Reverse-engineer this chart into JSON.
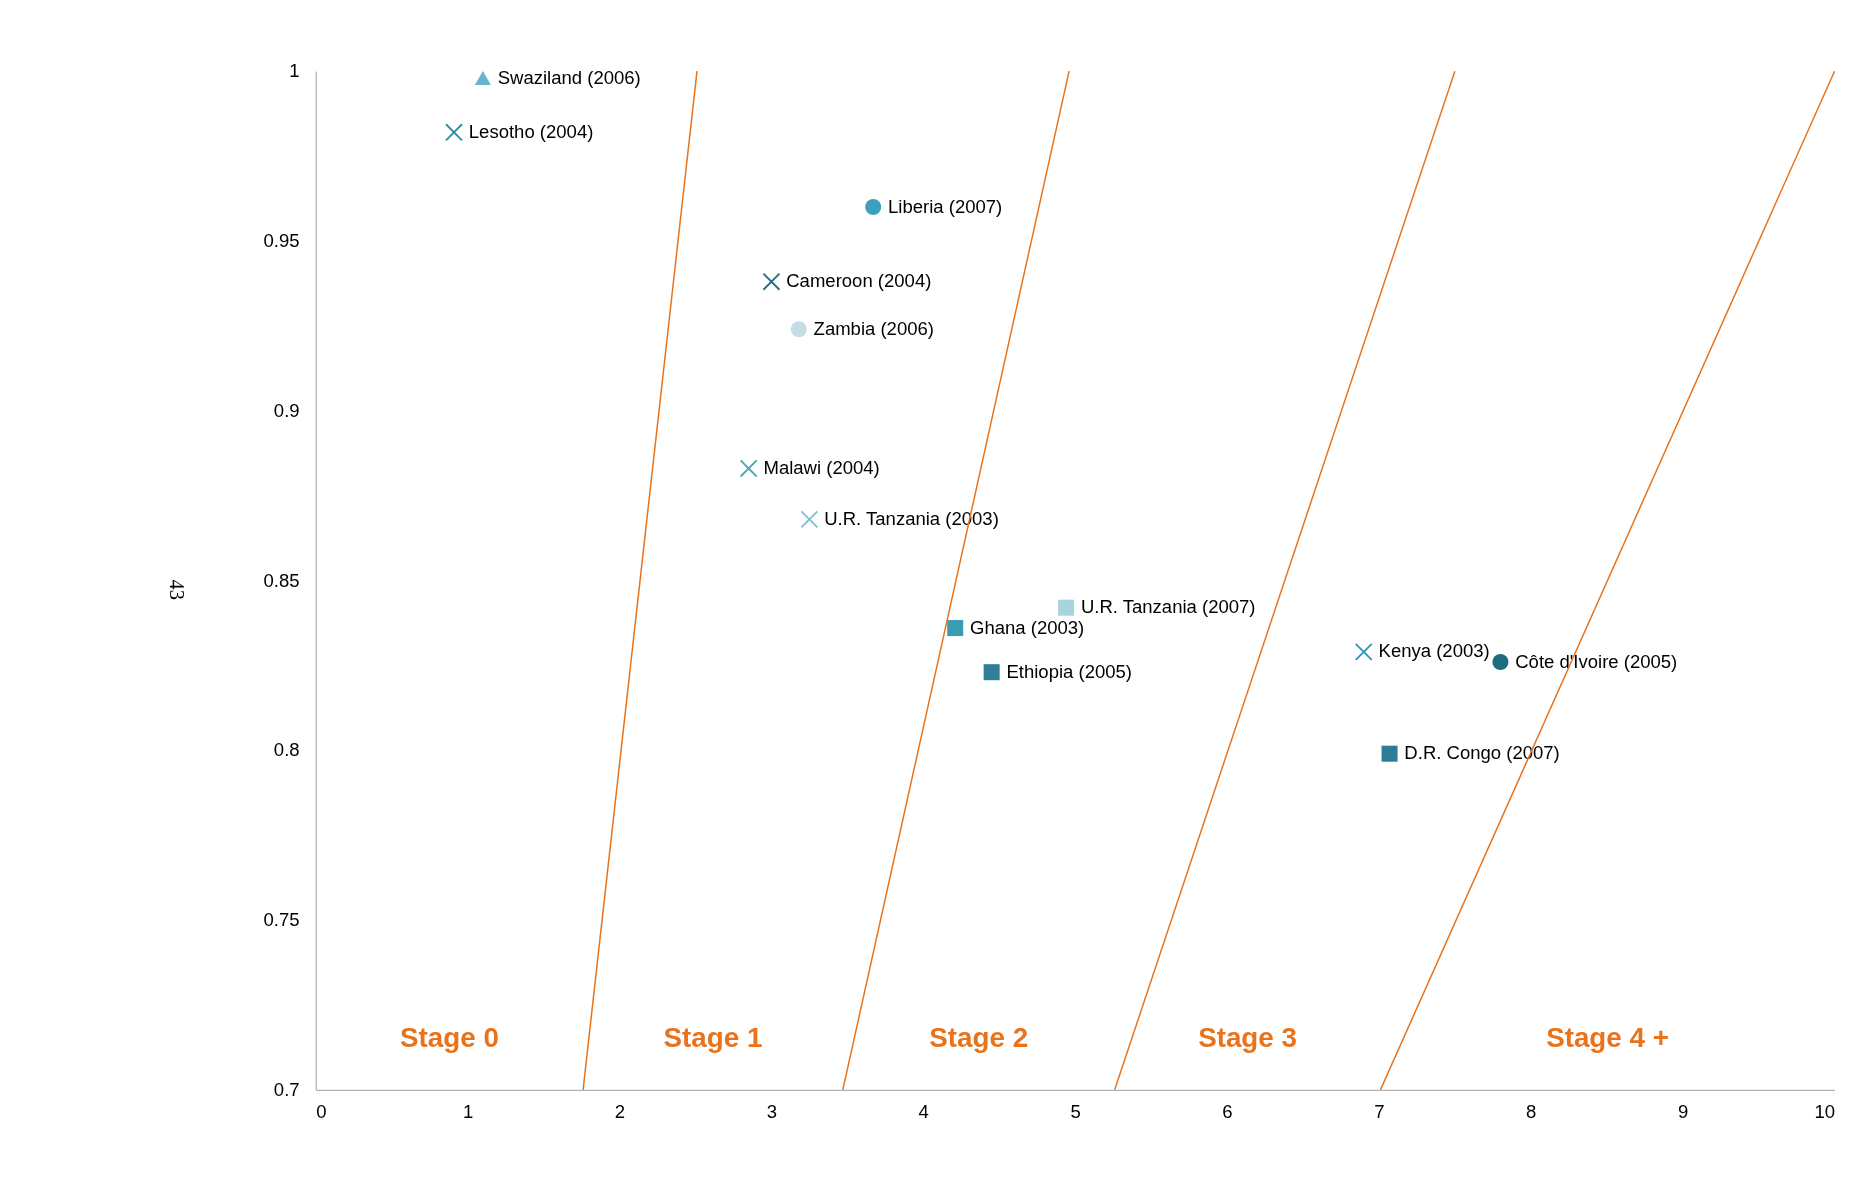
{
  "chart_data": {
    "type": "scatter",
    "xlim": [
      0,
      10
    ],
    "xticks": [
      0,
      1,
      2,
      3,
      4,
      5,
      6,
      7,
      8,
      9,
      10
    ],
    "ylim": [
      0.7,
      1
    ],
    "yticks": [
      0.7,
      0.75,
      0.8,
      0.85,
      0.9,
      0.95,
      1
    ],
    "grid": false,
    "series": [
      {
        "name": "Swaziland (2006)",
        "color": "#6bb5c9",
        "marker": "triangle",
        "x": [
          1.1
        ],
        "values": [
          0.998
        ]
      },
      {
        "name": "Lesotho (2004)",
        "color": "#2a8da8",
        "marker": "cross",
        "x": [
          0.91
        ],
        "values": [
          0.982
        ]
      },
      {
        "name": "Liberia (2007)",
        "color": "#3aa0bd",
        "marker": "circle",
        "x": [
          3.67
        ],
        "values": [
          0.96
        ]
      },
      {
        "name": "Cameroon (2004)",
        "color": "#1f6f87",
        "marker": "cross",
        "x": [
          3.0
        ],
        "values": [
          0.938
        ]
      },
      {
        "name": "Zambia (2006)",
        "color": "#c5dde6",
        "marker": "circle",
        "x": [
          3.18
        ],
        "values": [
          0.924
        ]
      },
      {
        "name": "Malawi (2004)",
        "color": "#4aa7c0",
        "marker": "cross",
        "x": [
          2.85
        ],
        "values": [
          0.883
        ]
      },
      {
        "name": "U.R. Tanzania (2003)",
        "color": "#7cc3d5",
        "marker": "cross",
        "x": [
          3.25
        ],
        "values": [
          0.868
        ]
      },
      {
        "name": "U.R. Tanzania (2007)",
        "color": "#a8d3df",
        "marker": "square",
        "x": [
          4.94
        ],
        "values": [
          0.842
        ]
      },
      {
        "name": "Ghana (2003)",
        "color": "#3a9bb3",
        "marker": "square",
        "x": [
          4.21
        ],
        "values": [
          0.836
        ]
      },
      {
        "name": "Ethiopia (2005)",
        "color": "#2f7f99",
        "marker": "square",
        "x": [
          4.45
        ],
        "values": [
          0.823
        ]
      },
      {
        "name": "Kenya (2003)",
        "color": "#2b9ab8",
        "marker": "cross",
        "x": [
          6.9
        ],
        "values": [
          0.829
        ]
      },
      {
        "name": "Côte d'Ivoire (2005)",
        "color": "#1c6b80",
        "marker": "circle",
        "x": [
          7.8
        ],
        "values": [
          0.826
        ]
      },
      {
        "name": "D.R. Congo (2007)",
        "color": "#2b7d99",
        "marker": "square",
        "x": [
          7.07
        ],
        "values": [
          0.799
        ]
      },
      {
        "type": "line",
        "color": "#e8731a",
        "x": [
          1.76,
          2.51
        ],
        "values": [
          0.7,
          1
        ]
      },
      {
        "type": "line",
        "color": "#e8731a",
        "x": [
          3.47,
          4.96
        ],
        "values": [
          0.7,
          1
        ]
      },
      {
        "type": "line",
        "color": "#e8731a",
        "x": [
          5.26,
          7.5
        ],
        "values": [
          0.7,
          1
        ]
      },
      {
        "type": "line",
        "color": "#e8731a",
        "x": [
          7.01,
          10
        ],
        "values": [
          0.7,
          1
        ]
      }
    ],
    "annotations": [
      "Stage 0",
      "Stage 1",
      "Stage 2",
      "Stage 3",
      "Stage 4 +",
      "43"
    ]
  }
}
